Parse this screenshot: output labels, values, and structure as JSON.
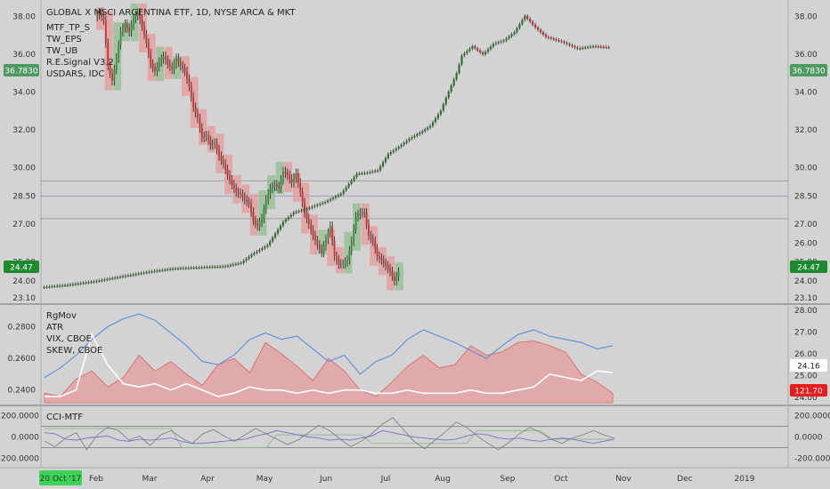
{
  "chart_data": [
    {
      "type": "candlestick",
      "title": "GLOBAL X MSCI ARGENTINA ETF, 1D, NYSE ARCA & MKT",
      "studies": [
        "MTF_TP_S",
        "TW_EPS",
        "TW_UB",
        "R.E.Signal V3.2"
      ],
      "compare_symbol": "USDARS, IDC",
      "left_axis_ticks": [
        "38.00",
        "36.00",
        "34.00",
        "32.00",
        "30.00",
        "28.50",
        "27.00",
        "25.00",
        "24.00",
        "23.10"
      ],
      "right_axis_ticks": [
        "38.00",
        "36.00",
        "34.00",
        "32.00",
        "30.00",
        "28.50",
        "27.00",
        "26.00",
        "25.00",
        "24.00",
        "23.10"
      ],
      "left_last_label": "36.7830",
      "left_last_value": 36.783,
      "right_last_label": "36.7830",
      "price_last_label": "24.47",
      "price_last_value": 24.47,
      "horizontal_levels": [
        29.3,
        28.5,
        27.3
      ],
      "ylim": [
        23.1,
        38.6
      ],
      "price_path": [
        [
          0,
          38.0
        ],
        [
          2,
          38.2
        ],
        [
          4,
          37.8
        ],
        [
          6,
          35.4
        ],
        [
          8,
          34.6
        ],
        [
          10,
          35.8
        ],
        [
          12,
          37.2
        ],
        [
          14,
          37.6
        ],
        [
          16,
          37.2
        ],
        [
          18,
          37.9
        ],
        [
          20,
          38.2
        ],
        [
          22,
          37.5
        ],
        [
          24,
          36.6
        ],
        [
          26,
          35.5
        ],
        [
          28,
          35.1
        ],
        [
          30,
          35.6
        ],
        [
          32,
          35.9
        ],
        [
          34,
          35.5
        ],
        [
          36,
          35.2
        ],
        [
          38,
          35.8
        ],
        [
          40,
          35.4
        ],
        [
          42,
          35.1
        ],
        [
          44,
          34.3
        ],
        [
          46,
          33.2
        ],
        [
          48,
          32.6
        ],
        [
          50,
          31.6
        ],
        [
          52,
          31.7
        ],
        [
          54,
          31.2
        ],
        [
          56,
          31.3
        ],
        [
          58,
          30.6
        ],
        [
          60,
          30.2
        ],
        [
          62,
          29.6
        ],
        [
          64,
          29.1
        ],
        [
          66,
          28.7
        ],
        [
          68,
          28.6
        ],
        [
          70,
          28.3
        ],
        [
          72,
          28.1
        ],
        [
          74,
          27.2
        ],
        [
          76,
          26.9
        ],
        [
          78,
          27.3
        ],
        [
          80,
          28.3
        ],
        [
          82,
          28.9
        ],
        [
          84,
          29.1
        ],
        [
          86,
          28.9
        ],
        [
          88,
          29.8
        ],
        [
          90,
          29.6
        ],
        [
          92,
          29.2
        ],
        [
          94,
          29.7
        ],
        [
          96,
          28.7
        ],
        [
          98,
          27.6
        ],
        [
          100,
          27.0
        ],
        [
          102,
          26.4
        ],
        [
          104,
          25.9
        ],
        [
          106,
          25.5
        ],
        [
          108,
          26.2
        ],
        [
          110,
          26.9
        ],
        [
          112,
          25.3
        ],
        [
          114,
          24.9
        ],
        [
          116,
          24.9
        ],
        [
          118,
          25.1
        ],
        [
          120,
          26.1
        ],
        [
          122,
          27.4
        ],
        [
          124,
          27.6
        ],
        [
          126,
          27.6
        ],
        [
          128,
          26.4
        ],
        [
          130,
          26.1
        ],
        [
          132,
          25.3
        ],
        [
          134,
          25.1
        ],
        [
          136,
          24.8
        ],
        [
          138,
          24.5
        ],
        [
          140,
          24.0
        ],
        [
          142,
          24.47
        ]
      ],
      "compare_path": [
        [
          0,
          17.4
        ],
        [
          10,
          17.6
        ],
        [
          20,
          17.9
        ],
        [
          30,
          18.3
        ],
        [
          40,
          18.7
        ],
        [
          50,
          19.0
        ],
        [
          60,
          19.1
        ],
        [
          70,
          19.2
        ],
        [
          76,
          19.5
        ],
        [
          80,
          20.2
        ],
        [
          86,
          21.0
        ],
        [
          92,
          23.0
        ],
        [
          96,
          23.8
        ],
        [
          102,
          24.2
        ],
        [
          108,
          24.7
        ],
        [
          114,
          25.4
        ],
        [
          120,
          27.1
        ],
        [
          124,
          27.2
        ],
        [
          128,
          27.4
        ],
        [
          132,
          28.8
        ],
        [
          136,
          29.4
        ],
        [
          140,
          30.1
        ],
        [
          144,
          30.6
        ],
        [
          148,
          31.2
        ],
        [
          152,
          32.5
        ],
        [
          154,
          33.6
        ],
        [
          158,
          35.7
        ],
        [
          160,
          37.2
        ],
        [
          164,
          38.0
        ],
        [
          168,
          37.3
        ],
        [
          172,
          38.2
        ],
        [
          176,
          38.5
        ],
        [
          180,
          39.2
        ],
        [
          184,
          40.6
        ],
        [
          188,
          39.6
        ],
        [
          192,
          38.8
        ],
        [
          198,
          38.4
        ],
        [
          204,
          37.8
        ],
        [
          210,
          38.0
        ],
        [
          216,
          37.9
        ]
      ],
      "compare_ylim": [
        16.5,
        41.5
      ],
      "x_axis": {
        "date_label": "20 Oct '17",
        "months": [
          "Feb",
          "Mar",
          "Apr",
          "May",
          "Jun",
          "Jul",
          "Aug",
          "Sep",
          "Oct",
          "Nov",
          "Dec",
          "2019"
        ]
      }
    },
    {
      "type": "line",
      "series": [
        {
          "name": "RgMov",
          "axis": "left",
          "color": "#e06a6a"
        },
        {
          "name": "ATR",
          "axis": "left",
          "color": "#5b8fd8"
        },
        {
          "name": "VIX, CBOE",
          "axis": "right"
        },
        {
          "name": "SKEW, CBOE",
          "axis": "right",
          "color": "#ffffff"
        }
      ],
      "left_axis_ticks": [
        "0.2800",
        "0.2600",
        "0.2400"
      ],
      "right_axis_ticks": [
        "28.00",
        "27.00",
        "26.00",
        "25.00",
        "24.00"
      ],
      "vix_last": "24.16",
      "skew_last": "121.70",
      "rgmov_area": [
        0.238,
        0.236,
        0.247,
        0.252,
        0.242,
        0.248,
        0.262,
        0.252,
        0.258,
        0.25,
        0.243,
        0.256,
        0.26,
        0.251,
        0.27,
        0.263,
        0.255,
        0.246,
        0.26,
        0.252,
        0.24,
        0.236,
        0.245,
        0.255,
        0.262,
        0.254,
        0.256,
        0.268,
        0.262,
        0.264,
        0.27,
        0.271,
        0.268,
        0.264,
        0.25,
        0.245,
        0.238
      ],
      "atr_line": [
        0.248,
        0.254,
        0.262,
        0.272,
        0.28,
        0.285,
        0.288,
        0.284,
        0.276,
        0.268,
        0.258,
        0.256,
        0.262,
        0.272,
        0.276,
        0.272,
        0.274,
        0.266,
        0.258,
        0.262,
        0.25,
        0.258,
        0.262,
        0.272,
        0.278,
        0.274,
        0.27,
        0.265,
        0.26,
        0.268,
        0.275,
        0.278,
        0.274,
        0.272,
        0.27,
        0.266,
        0.268
      ],
      "skew_line": [
        0.236,
        0.236,
        0.24,
        0.275,
        0.256,
        0.244,
        0.242,
        0.244,
        0.24,
        0.244,
        0.24,
        0.236,
        0.238,
        0.242,
        0.24,
        0.24,
        0.238,
        0.24,
        0.238,
        0.24,
        0.24,
        0.238,
        0.238,
        0.24,
        0.238,
        0.238,
        0.238,
        0.24,
        0.238,
        0.238,
        0.24,
        0.242,
        0.25,
        0.248,
        0.246,
        0.252,
        0.251
      ],
      "ylim": [
        0.232,
        0.292
      ]
    },
    {
      "type": "line",
      "title": "CCI-MTF",
      "right_axis_ticks": [
        "200.0000",
        "0.0000",
        "-200.0000"
      ],
      "left_axis_ticks": [
        "200.0000",
        "0.0000",
        "-200.0000"
      ],
      "ylim": [
        -270,
        270
      ],
      "levels": [
        100,
        -100
      ],
      "series_a": [
        -40,
        -90,
        -10,
        40,
        -120,
        20,
        90,
        60,
        -30,
        10,
        -80,
        20,
        60,
        -10,
        -60,
        30,
        70,
        10,
        -40,
        20,
        80,
        30,
        -20,
        -70,
        -30,
        40,
        110,
        60,
        -20,
        -90,
        -40,
        30,
        120,
        180,
        70,
        -40,
        -110,
        -30,
        50,
        140,
        90,
        10,
        -60,
        -120,
        -50,
        30,
        90,
        40,
        -20,
        -60,
        -10,
        20,
        60,
        20,
        -10
      ],
      "series_b": [
        40,
        30,
        -20,
        -30,
        -10,
        0,
        10,
        -30,
        -40,
        -20,
        -30,
        -20,
        -10,
        -40,
        -60,
        -60,
        -50,
        -40,
        -30,
        -20,
        10,
        30,
        60,
        40,
        20,
        0,
        -10,
        -30,
        -20,
        -30,
        -10,
        10,
        60,
        40,
        20,
        0,
        -10,
        -20,
        -30,
        -20,
        10,
        30,
        20,
        -10,
        -20,
        -10,
        -30,
        -40,
        -20,
        -10,
        -20,
        -40,
        -60,
        -40,
        -20
      ],
      "series_c": [
        80,
        80,
        80,
        80,
        80,
        80,
        80,
        80,
        80,
        80,
        80,
        80,
        80,
        -100,
        -100,
        -100,
        -100,
        -100,
        -100,
        -100,
        -100,
        -100,
        20,
        20,
        20,
        20,
        20,
        20,
        20,
        20,
        20,
        -60,
        -60,
        -60,
        -60,
        -60,
        -60,
        -60,
        -60,
        -60,
        -60,
        60,
        60,
        60,
        60,
        60,
        60,
        60,
        -20,
        -20,
        -20,
        -20,
        -20,
        -20,
        -20
      ]
    }
  ]
}
